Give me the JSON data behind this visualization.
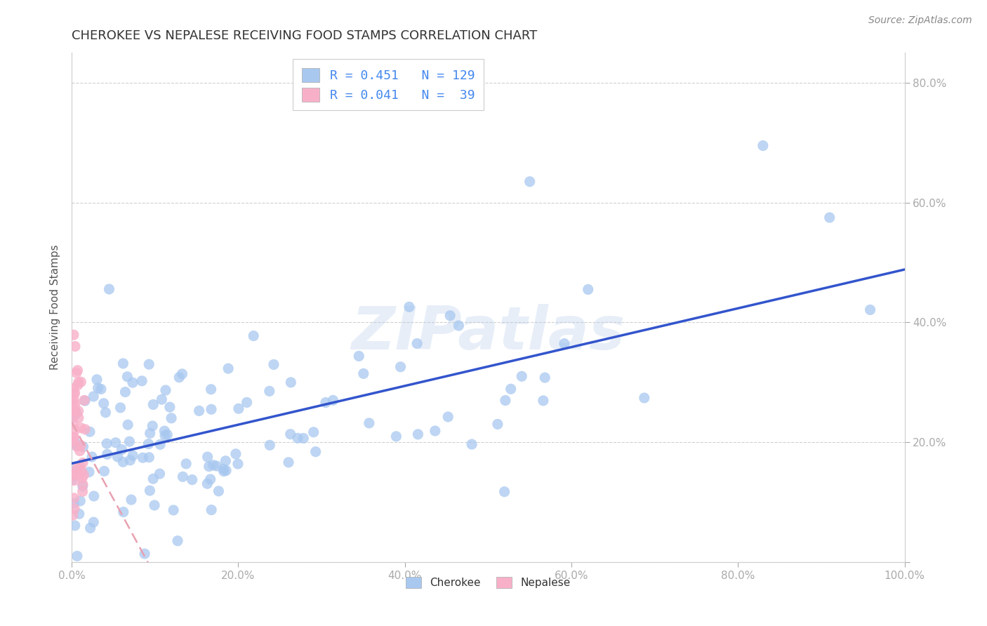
{
  "title": "CHEROKEE VS NEPALESE RECEIVING FOOD STAMPS CORRELATION CHART",
  "source": "Source: ZipAtlas.com",
  "ylabel": "Receiving Food Stamps",
  "cherokee_color": "#a8c8f0",
  "nepalese_color": "#f8b0c8",
  "trend_cherokee": "#3355cc",
  "trend_nepalese": "#e8a0b0",
  "legend_R_cherokee": "0.451",
  "legend_N_cherokee": "129",
  "legend_R_nepalese": "0.041",
  "legend_N_nepalese": "39",
  "watermark": "ZIPatlas",
  "background_color": "#ffffff",
  "grid_color": "#d0d0d0",
  "title_color": "#333333",
  "axis_label_color": "#555555",
  "tick_color_right": "#5599ee",
  "legend_text_color": "#4488ee",
  "source_color": "#888888"
}
